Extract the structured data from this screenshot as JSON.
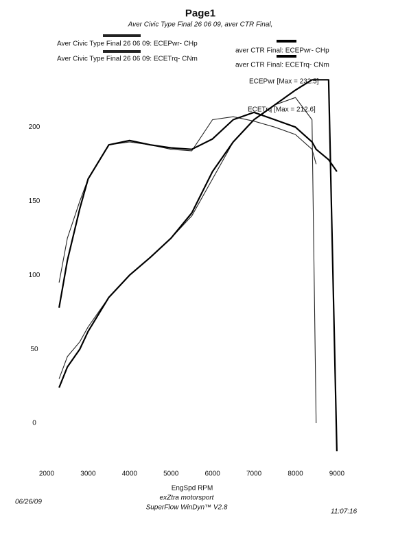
{
  "chart_data": {
    "type": "line",
    "title": "Page1",
    "subtitle": "Aver Civic Type Final 26 06 09, aver CTR Final,",
    "x_label": "EngSpd  RPM",
    "annotations": [
      "ECEPwr [Max = 232.5]",
      "ECETrq [Max = 212.6]"
    ],
    "footer": {
      "date": "06/26/09",
      "company": "exZtra motorsport",
      "software": "SuperFlow WinDyn™ V2.8",
      "time": "11:07:16"
    },
    "x": [
      2300,
      2500,
      2800,
      3000,
      3500,
      4000,
      4500,
      5000,
      5500,
      6000,
      6500,
      7000,
      7500,
      8000,
      8400,
      8500,
      8800,
      9000
    ],
    "series": [
      {
        "name": "Aver Civic Type Final 26 06 09: ECEPwr- CHp",
        "color": "#222222",
        "values": [
          30,
          45,
          55,
          65,
          85,
          100,
          112,
          125,
          140,
          165,
          190,
          205,
          215,
          220,
          205,
          0,
          null,
          null
        ]
      },
      {
        "name": "Aver Civic Type Final 26 06 09: ECETrq- CNm",
        "color": "#222222",
        "values": [
          95,
          125,
          150,
          165,
          188,
          190,
          188,
          185,
          184,
          205,
          207,
          204,
          200,
          195,
          185,
          175,
          null,
          null
        ]
      },
      {
        "name": "aver CTR Final: ECEPwr- CHp",
        "color": "#000000",
        "values": [
          24,
          38,
          50,
          62,
          85,
          100,
          112,
          125,
          142,
          170,
          190,
          205,
          215,
          225,
          232,
          232,
          232,
          -19
        ]
      },
      {
        "name": "aver CTR Final: ECETrq- CNm",
        "color": "#000000",
        "values": [
          78,
          110,
          145,
          165,
          188,
          191,
          188,
          186,
          185,
          192,
          205,
          210,
          205,
          200,
          190,
          185,
          178,
          170
        ]
      }
    ],
    "xlim": [
      2000,
      9150
    ],
    "xticks": [
      2000,
      3000,
      4000,
      5000,
      6000,
      7000,
      8000,
      9000
    ],
    "ylim": [
      -25,
      240
    ],
    "yticks": [
      0,
      50,
      100,
      150,
      200
    ],
    "grid": false
  }
}
